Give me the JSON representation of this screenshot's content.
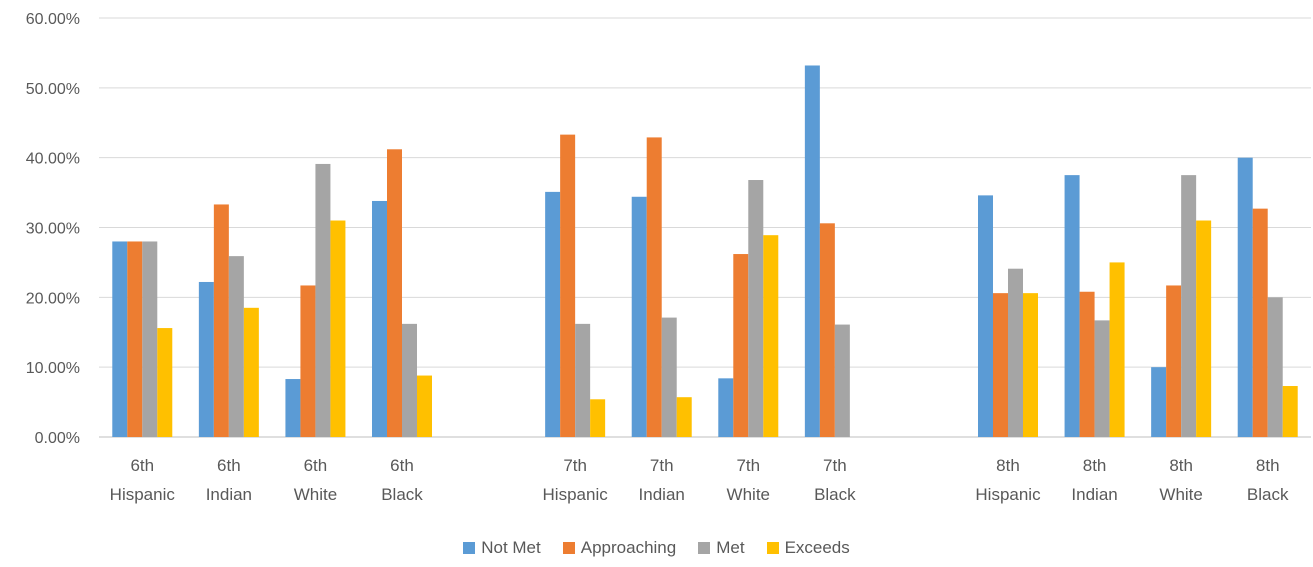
{
  "chart_data": {
    "type": "bar",
    "categories": [
      [
        "6th",
        "Hispanic"
      ],
      [
        "6th",
        "Indian"
      ],
      [
        "6th",
        "White"
      ],
      [
        "6th",
        "Black"
      ],
      [
        "",
        ""
      ],
      [
        "7th",
        "Hispanic"
      ],
      [
        "7th",
        "Indian"
      ],
      [
        "7th",
        "White"
      ],
      [
        "7th",
        "Black"
      ],
      [
        "",
        ""
      ],
      [
        "8th",
        "Hispanic"
      ],
      [
        "8th",
        "Indian"
      ],
      [
        "8th",
        "White"
      ],
      [
        "8th",
        "Black"
      ]
    ],
    "series": [
      {
        "name": "Not Met",
        "color": "#5B9BD5",
        "values": [
          28.0,
          22.2,
          8.3,
          33.8,
          null,
          35.1,
          34.4,
          8.4,
          53.2,
          null,
          34.6,
          37.5,
          10.0,
          40.0
        ]
      },
      {
        "name": "Approaching",
        "color": "#ED7D31",
        "values": [
          28.0,
          33.3,
          21.7,
          41.2,
          null,
          43.3,
          42.9,
          26.2,
          30.6,
          null,
          20.6,
          20.8,
          21.7,
          32.7
        ]
      },
      {
        "name": "Met",
        "color": "#A5A5A5",
        "values": [
          28.0,
          25.9,
          39.1,
          16.2,
          null,
          16.2,
          17.1,
          36.8,
          16.1,
          null,
          24.1,
          16.7,
          37.5,
          20.0
        ]
      },
      {
        "name": "Exceeds",
        "color": "#FFC000",
        "values": [
          15.6,
          18.5,
          31.0,
          8.8,
          null,
          5.4,
          5.7,
          28.9,
          null,
          null,
          20.6,
          25.0,
          31.0,
          7.3
        ]
      }
    ],
    "ylim": [
      0,
      60
    ],
    "yticks": [
      "0.00%",
      "10.00%",
      "20.00%",
      "30.00%",
      "40.00%",
      "50.00%",
      "60.00%"
    ],
    "grid": true,
    "legend_position": "bottom"
  }
}
